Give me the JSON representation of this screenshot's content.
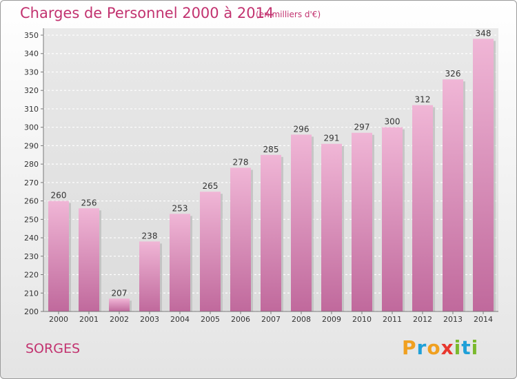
{
  "header": {
    "title": "Charges de Personnel 2000 à 2014",
    "subtitle": "(en milliers d'€)"
  },
  "footer": {
    "place": "SORGES"
  },
  "logo": {
    "letters": [
      {
        "char": "P",
        "color": "#f0a020"
      },
      {
        "char": "r",
        "color": "#1fa0d8"
      },
      {
        "char": "o",
        "color": "#f0a020"
      },
      {
        "char": "x",
        "color": "#e8372e"
      },
      {
        "char": "i",
        "color": "#7ab92c"
      },
      {
        "char": "t",
        "color": "#1fa0d8"
      },
      {
        "char": "i",
        "color": "#7ab92c"
      }
    ]
  },
  "chart_data": {
    "type": "bar",
    "categories": [
      "2000",
      "2001",
      "2002",
      "2003",
      "2004",
      "2005",
      "2006",
      "2007",
      "2008",
      "2009",
      "2010",
      "2011",
      "2012",
      "2013",
      "2014"
    ],
    "values": [
      260,
      256,
      207,
      238,
      253,
      265,
      278,
      285,
      296,
      291,
      297,
      300,
      312,
      326,
      348
    ],
    "title": "Charges de Personnel 2000 à 2014",
    "subtitle": "(en milliers d'€)",
    "ylim": [
      200,
      350
    ],
    "yticks": [
      200,
      210,
      220,
      230,
      240,
      250,
      260,
      270,
      280,
      290,
      300,
      310,
      320,
      330,
      340,
      350
    ],
    "grid": true,
    "legend": "none",
    "colors": {
      "bar_light": "#f0b6d6",
      "bar_dark": "#c0699c",
      "bar_shadow": "#b9b9b9"
    }
  }
}
